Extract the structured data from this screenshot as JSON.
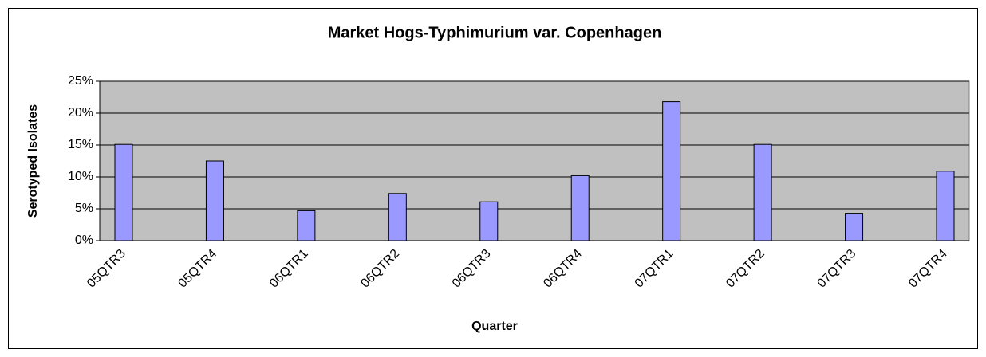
{
  "chart_data": {
    "type": "bar",
    "title": "Market Hogs-Typhimurium var. Copenhagen",
    "x_label": "Quarter",
    "y_label": "Serotyped Isolates",
    "categories": [
      "05QTR3",
      "05QTR4",
      "06QTR1",
      "06QTR2",
      "06QTR3",
      "06QTR4",
      "07QTR1",
      "07QTR2",
      "07QTR3",
      "07QTR4"
    ],
    "values": [
      15.1,
      12.5,
      4.7,
      7.4,
      6.1,
      10.2,
      21.8,
      15.1,
      4.3,
      10.9
    ],
    "color": "#9999ff",
    "ylim": [
      0,
      25
    ],
    "yticks": [
      {
        "value": 0,
        "label": "0%"
      },
      {
        "value": 5,
        "label": "5%"
      },
      {
        "value": 10,
        "label": "10%"
      },
      {
        "value": 15,
        "label": "15%"
      },
      {
        "value": 20,
        "label": "20%"
      },
      {
        "value": 25,
        "label": "25%"
      }
    ],
    "grid": true
  }
}
